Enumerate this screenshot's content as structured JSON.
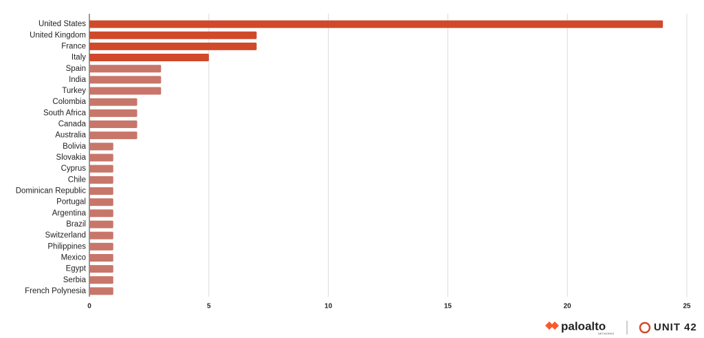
{
  "chart_data": {
    "type": "hbar",
    "categories": [
      "United States",
      "United Kingdom",
      "France",
      "Italy",
      "Spain",
      "India",
      "Turkey",
      "Colombia",
      "South Africa",
      "Canada",
      "Australia",
      "Bolivia",
      "Slovakia",
      "Cyprus",
      "Chile",
      "Dominican Republic",
      "Portugal",
      "Argentina",
      "Brazil",
      "Switzerland",
      "Philippines",
      "Mexico",
      "Egypt",
      "Serbia",
      "French Polynesia"
    ],
    "values": [
      24,
      7,
      7,
      5,
      3,
      3,
      3,
      2,
      2,
      2,
      2,
      1,
      1,
      1,
      1,
      1,
      1,
      1,
      1,
      1,
      1,
      1,
      1,
      1,
      1
    ],
    "colors": [
      "#d0492b",
      "#d0492b",
      "#d0492b",
      "#d0492b",
      "#c8766a",
      "#c8766a",
      "#c8766a",
      "#c8766a",
      "#c8766a",
      "#c8766a",
      "#c8766a",
      "#c8766a",
      "#c8766a",
      "#c8766a",
      "#c8766a",
      "#c8766a",
      "#c8766a",
      "#c8766a",
      "#c8766a",
      "#c8766a",
      "#c8766a",
      "#c8766a",
      "#c8766a",
      "#c8766a",
      "#c8766a"
    ],
    "xlim": [
      0,
      25
    ],
    "xticks": [
      0,
      5,
      10,
      15,
      20,
      25
    ],
    "grid": true
  },
  "logos": {
    "brand": "paloalto",
    "brand_sub": "NETWORKS",
    "unit": "UNIT 42"
  }
}
